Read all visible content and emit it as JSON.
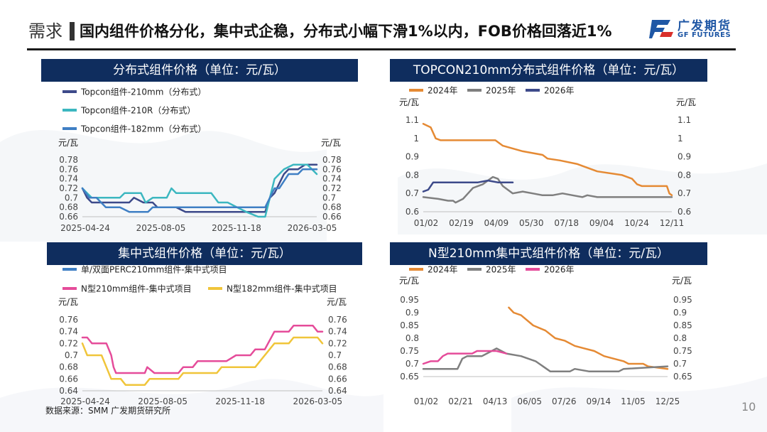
{
  "header": {
    "section": "需求",
    "headline": "国内组件价格分化，集中式企稳，分布式小幅下滑1%以内，FOB价格回落近1%",
    "logo_cn": "广发期货",
    "logo_en": "GF FUTURES"
  },
  "footer": {
    "source": "数据来源：SMM 广发期货研究所",
    "page": "10"
  },
  "colors": {
    "navy": "#0f2d5e",
    "brand_blue": "#1f57a5",
    "brand_red": "#d9302b"
  },
  "chart_data": [
    {
      "id": "dist",
      "type": "line",
      "title": "分布式组件价格（单位：元/瓦）",
      "unit_left": "元/瓦",
      "unit_right": "元/瓦",
      "ylim": [
        0.66,
        0.78
      ],
      "yticks": [
        "0.78",
        "0.76",
        "0.74",
        "0.72",
        "0.7",
        "0.68",
        "0.66"
      ],
      "xticks": [
        "2025-04-24",
        "2025-08-05",
        "2025-11-18",
        "2026-03-05"
      ],
      "xlim": [
        0,
        100
      ],
      "legend_position": "top-left",
      "series": [
        {
          "name": "Topcon组件-210mm（分布式）",
          "color": "#3d4a8a",
          "points": [
            [
              0,
              0.72
            ],
            [
              2,
              0.7
            ],
            [
              4,
              0.69
            ],
            [
              20,
              0.69
            ],
            [
              22,
              0.7
            ],
            [
              26,
              0.69
            ],
            [
              30,
              0.69
            ],
            [
              32,
              0.68
            ],
            [
              40,
              0.68
            ],
            [
              44,
              0.67
            ],
            [
              78,
              0.67
            ],
            [
              80,
              0.7
            ],
            [
              82,
              0.71
            ],
            [
              84,
              0.73
            ],
            [
              86,
              0.75
            ],
            [
              88,
              0.76
            ],
            [
              92,
              0.76
            ],
            [
              95,
              0.77
            ],
            [
              98,
              0.77
            ],
            [
              100,
              0.77
            ]
          ]
        },
        {
          "name": "Topcon组件-210R（分布式）",
          "color": "#3cb7c0",
          "points": [
            [
              0,
              0.72
            ],
            [
              2,
              0.71
            ],
            [
              4,
              0.7
            ],
            [
              16,
              0.7
            ],
            [
              18,
              0.71
            ],
            [
              25,
              0.71
            ],
            [
              27,
              0.69
            ],
            [
              30,
              0.7
            ],
            [
              36,
              0.7
            ],
            [
              38,
              0.72
            ],
            [
              40,
              0.71
            ],
            [
              55,
              0.71
            ],
            [
              58,
              0.69
            ],
            [
              62,
              0.69
            ],
            [
              66,
              0.68
            ],
            [
              70,
              0.67
            ],
            [
              75,
              0.66
            ],
            [
              78,
              0.66
            ],
            [
              80,
              0.7
            ],
            [
              82,
              0.74
            ],
            [
              86,
              0.76
            ],
            [
              90,
              0.77
            ],
            [
              96,
              0.77
            ],
            [
              100,
              0.75
            ]
          ]
        },
        {
          "name": "Topcon组件-182mm（分布式）",
          "color": "#3f7fc4",
          "points": [
            [
              0,
              0.72
            ],
            [
              3,
              0.7
            ],
            [
              6,
              0.7
            ],
            [
              10,
              0.68
            ],
            [
              16,
              0.68
            ],
            [
              20,
              0.67
            ],
            [
              28,
              0.67
            ],
            [
              30,
              0.68
            ],
            [
              40,
              0.68
            ],
            [
              44,
              0.68
            ],
            [
              50,
              0.68
            ],
            [
              70,
              0.68
            ],
            [
              78,
              0.68
            ],
            [
              80,
              0.7
            ],
            [
              82,
              0.72
            ],
            [
              84,
              0.72
            ],
            [
              88,
              0.75
            ],
            [
              92,
              0.75
            ],
            [
              94,
              0.76
            ],
            [
              100,
              0.76
            ]
          ]
        }
      ]
    },
    {
      "id": "topcon",
      "type": "line",
      "title": "TOPCON210mm分布式组件价格（单位：元/瓦）",
      "unit_left": "元/瓦",
      "unit_right": "元/瓦",
      "ylim": [
        0.6,
        1.1
      ],
      "yticks": [
        "1.1",
        "1",
        "0.9",
        "0.8",
        "0.7",
        "0.6"
      ],
      "xticks": [
        "01/02",
        "02/19",
        "04/09",
        "05/30",
        "07/18",
        "09/04",
        "10/24",
        "12/11"
      ],
      "xlim": [
        0,
        100
      ],
      "legend_position": "top-left",
      "series": [
        {
          "name": "2024年",
          "color": "#e58a34",
          "points": [
            [
              0,
              1.08
            ],
            [
              3,
              1.06
            ],
            [
              5,
              1.0
            ],
            [
              7,
              0.99
            ],
            [
              29,
              0.99
            ],
            [
              32,
              0.96
            ],
            [
              40,
              0.93
            ],
            [
              48,
              0.91
            ],
            [
              50,
              0.89
            ],
            [
              55,
              0.88
            ],
            [
              62,
              0.86
            ],
            [
              66,
              0.84
            ],
            [
              70,
              0.82
            ],
            [
              80,
              0.8
            ],
            [
              84,
              0.78
            ],
            [
              86,
              0.75
            ],
            [
              88,
              0.74
            ],
            [
              98,
              0.74
            ],
            [
              99,
              0.7
            ],
            [
              100,
              0.69
            ]
          ]
        },
        {
          "name": "2025年",
          "color": "#7f7f7f",
          "points": [
            [
              0,
              0.68
            ],
            [
              6,
              0.67
            ],
            [
              10,
              0.66
            ],
            [
              12,
              0.66
            ],
            [
              13,
              0.65
            ],
            [
              16,
              0.67
            ],
            [
              18,
              0.7
            ],
            [
              20,
              0.73
            ],
            [
              24,
              0.75
            ],
            [
              26,
              0.77
            ],
            [
              28,
              0.79
            ],
            [
              30,
              0.78
            ],
            [
              32,
              0.74
            ],
            [
              36,
              0.7
            ],
            [
              40,
              0.71
            ],
            [
              44,
              0.7
            ],
            [
              48,
              0.69
            ],
            [
              52,
              0.69
            ],
            [
              56,
              0.7
            ],
            [
              60,
              0.69
            ],
            [
              64,
              0.68
            ],
            [
              66,
              0.69
            ],
            [
              70,
              0.68
            ],
            [
              100,
              0.68
            ]
          ]
        },
        {
          "name": "2026年",
          "color": "#3d4a8a",
          "points": [
            [
              0,
              0.71
            ],
            [
              2,
              0.72
            ],
            [
              4,
              0.76
            ],
            [
              22,
              0.76
            ],
            [
              26,
              0.77
            ],
            [
              30,
              0.76
            ],
            [
              36,
              0.76
            ]
          ]
        }
      ]
    },
    {
      "id": "central",
      "type": "line",
      "title": "集中式组件价格（单位：元/瓦）",
      "unit_left": "元/瓦",
      "unit_right": "元/瓦",
      "ylim": [
        0.64,
        0.76
      ],
      "yticks": [
        "0.76",
        "0.74",
        "0.72",
        "0.7",
        "0.68",
        "0.66",
        "0.64"
      ],
      "xticks": [
        "2025-04-24",
        "2025-08-05",
        "2025-11-18",
        "2026-03-05"
      ],
      "xlim": [
        0,
        100
      ],
      "legend_position": "top-left",
      "series": [
        {
          "name": "单/双面PERC210mm组件-集中式项目",
          "color": "#3f7fc4",
          "points": []
        },
        {
          "name": "N型210mm组件-集中式项目",
          "color": "#e54c9a",
          "points": [
            [
              0,
              0.73
            ],
            [
              2,
              0.73
            ],
            [
              4,
              0.72
            ],
            [
              10,
              0.72
            ],
            [
              12,
              0.7
            ],
            [
              13,
              0.68
            ],
            [
              14,
              0.67
            ],
            [
              26,
              0.67
            ],
            [
              27,
              0.68
            ],
            [
              30,
              0.67
            ],
            [
              40,
              0.67
            ],
            [
              42,
              0.68
            ],
            [
              46,
              0.68
            ],
            [
              48,
              0.69
            ],
            [
              60,
              0.69
            ],
            [
              64,
              0.7
            ],
            [
              70,
              0.7
            ],
            [
              72,
              0.71
            ],
            [
              76,
              0.71
            ],
            [
              80,
              0.74
            ],
            [
              86,
              0.74
            ],
            [
              88,
              0.75
            ],
            [
              96,
              0.75
            ],
            [
              98,
              0.74
            ],
            [
              100,
              0.74
            ]
          ]
        },
        {
          "name": "N型182mm组件-集中式项目",
          "color": "#f0c53a",
          "points": [
            [
              0,
              0.72
            ],
            [
              2,
              0.7
            ],
            [
              8,
              0.7
            ],
            [
              10,
              0.68
            ],
            [
              12,
              0.66
            ],
            [
              16,
              0.66
            ],
            [
              18,
              0.65
            ],
            [
              26,
              0.65
            ],
            [
              28,
              0.66
            ],
            [
              40,
              0.66
            ],
            [
              42,
              0.67
            ],
            [
              56,
              0.67
            ],
            [
              58,
              0.68
            ],
            [
              72,
              0.68
            ],
            [
              74,
              0.69
            ],
            [
              80,
              0.72
            ],
            [
              86,
              0.72
            ],
            [
              88,
              0.73
            ],
            [
              98,
              0.73
            ],
            [
              100,
              0.72
            ]
          ]
        }
      ]
    },
    {
      "id": "ntype",
      "type": "line",
      "title": "N型210mm集中式组件价格（单位：元/瓦）",
      "unit_left": "元/瓦",
      "unit_right": "元/瓦",
      "ylim": [
        0.65,
        0.95
      ],
      "yticks": [
        "0.95",
        "0.9",
        "0.85",
        "0.8",
        "0.75",
        "0.7",
        "0.65"
      ],
      "xticks": [
        "01/02",
        "02/21",
        "04/13",
        "06/05",
        "07/26",
        "09/14",
        "11/05",
        "12/25"
      ],
      "xlim": [
        0,
        100
      ],
      "legend_position": "top-left",
      "series": [
        {
          "name": "2024年",
          "color": "#e58a34",
          "points": [
            [
              35,
              0.92
            ],
            [
              37,
              0.9
            ],
            [
              40,
              0.89
            ],
            [
              45,
              0.85
            ],
            [
              50,
              0.83
            ],
            [
              54,
              0.8
            ],
            [
              58,
              0.79
            ],
            [
              62,
              0.77
            ],
            [
              66,
              0.76
            ],
            [
              70,
              0.75
            ],
            [
              74,
              0.73
            ],
            [
              78,
              0.72
            ],
            [
              82,
              0.71
            ],
            [
              84,
              0.7
            ],
            [
              90,
              0.7
            ],
            [
              92,
              0.69
            ],
            [
              100,
              0.68
            ]
          ]
        },
        {
          "name": "2025年",
          "color": "#7f7f7f",
          "points": [
            [
              0,
              0.68
            ],
            [
              14,
              0.68
            ],
            [
              16,
              0.72
            ],
            [
              18,
              0.73
            ],
            [
              24,
              0.73
            ],
            [
              28,
              0.75
            ],
            [
              30,
              0.76
            ],
            [
              34,
              0.74
            ],
            [
              40,
              0.73
            ],
            [
              46,
              0.71
            ],
            [
              52,
              0.67
            ],
            [
              60,
              0.67
            ],
            [
              62,
              0.68
            ],
            [
              68,
              0.67
            ],
            [
              80,
              0.67
            ],
            [
              82,
              0.68
            ],
            [
              100,
              0.69
            ]
          ]
        },
        {
          "name": "2026年",
          "color": "#e54c9a",
          "points": [
            [
              0,
              0.7
            ],
            [
              3,
              0.71
            ],
            [
              6,
              0.71
            ],
            [
              8,
              0.73
            ],
            [
              10,
              0.74
            ],
            [
              20,
              0.74
            ],
            [
              22,
              0.75
            ],
            [
              30,
              0.75
            ],
            [
              34,
              0.74
            ]
          ]
        }
      ]
    }
  ]
}
